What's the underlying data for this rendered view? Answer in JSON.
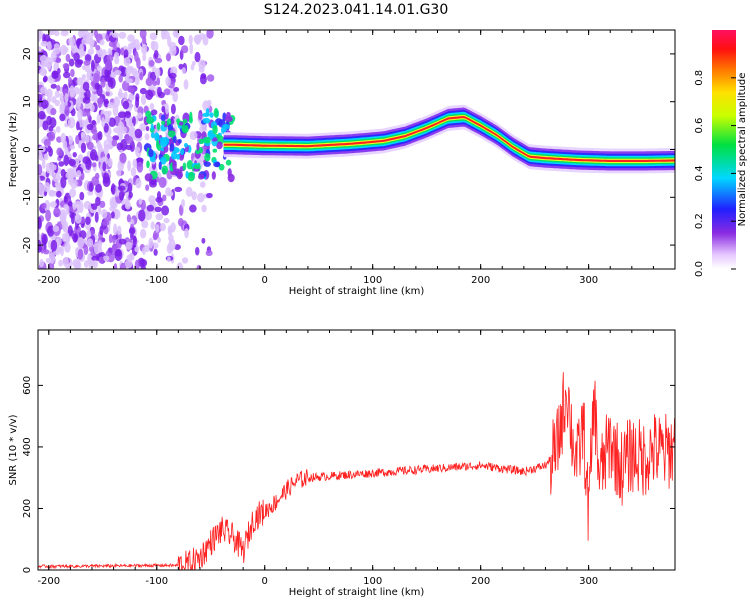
{
  "title": "S124.2023.041.14.01.G30",
  "chart_data": [
    {
      "type": "heatmap",
      "xlabel": "Height of straight line (km)",
      "ylabel": "Frequency (Hz)",
      "xlim": [
        -210,
        380
      ],
      "ylim": [
        -25,
        25
      ],
      "xticks": [
        -200,
        -100,
        0,
        100,
        200,
        300
      ],
      "yticks": [
        -20,
        -10,
        0,
        10,
        20
      ],
      "grid": false,
      "colorbar": {
        "label": "Normalized spectral amplitude",
        "range": [
          0,
          1
        ],
        "ticks": [
          "0.0",
          "0.2",
          "0.4",
          "0.6",
          "0.8"
        ],
        "colormap": "rainbow (violet to red)"
      },
      "ridge": {
        "x": [
          -30,
          0,
          40,
          80,
          110,
          130,
          150,
          170,
          185,
          200,
          215,
          230,
          245,
          260,
          290,
          320,
          350,
          380
        ],
        "y": [
          1,
          0.8,
          0.7,
          1.2,
          1.8,
          2.8,
          4.5,
          6.5,
          6.8,
          5,
          3,
          0.5,
          -1.5,
          -1.8,
          -2.2,
          -2.4,
          -2.4,
          -2.3
        ]
      }
    },
    {
      "type": "line",
      "xlabel": "Height of straight line (km)",
      "ylabel": "SNR (10 * v/v)",
      "xlim": [
        -210,
        380
      ],
      "ylim": [
        0,
        780
      ],
      "xticks": [
        -200,
        -100,
        0,
        100,
        200,
        300
      ],
      "yticks": [
        0,
        200,
        400,
        600
      ],
      "grid": false,
      "color": "#ff2020",
      "series": [
        {
          "x": [
            -210,
            -180,
            -150,
            -120,
            -100,
            -80,
            -70,
            -60,
            -50,
            -40,
            -30,
            -20,
            -10,
            0,
            10,
            20,
            30,
            40,
            60,
            80,
            100,
            120,
            140,
            160,
            180,
            200,
            220,
            240,
            260,
            270,
            280,
            285,
            290,
            295,
            300,
            305,
            310,
            320,
            330,
            340,
            350,
            360,
            370,
            380
          ],
          "y": [
            12,
            12,
            13,
            14,
            15,
            15,
            20,
            40,
            90,
            130,
            110,
            60,
            170,
            190,
            220,
            260,
            290,
            300,
            305,
            310,
            315,
            320,
            325,
            330,
            335,
            340,
            330,
            320,
            340,
            380,
            600,
            420,
            350,
            480,
            180,
            560,
            300,
            420,
            330,
            380,
            360,
            390,
            380,
            400
          ]
        }
      ]
    }
  ]
}
